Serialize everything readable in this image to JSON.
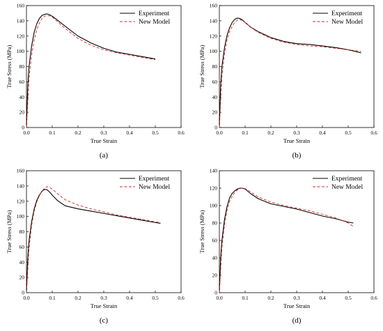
{
  "colors": {
    "experiment": "#000000",
    "model": "#d62728"
  },
  "chart_data": [
    {
      "type": "line",
      "panel_label": "(a)",
      "xlabel": "True Strain",
      "ylabel": "True Stress (MPa)",
      "xlim": [
        0,
        0.6
      ],
      "ylim": [
        0,
        160
      ],
      "xticks": [
        "0.0",
        "0.1",
        "0.2",
        "0.3",
        "0.4",
        "0.5",
        "0.6"
      ],
      "yticks": [
        "0",
        "20",
        "40",
        "60",
        "80",
        "100",
        "120",
        "140",
        "160"
      ],
      "legend_position": "top-right",
      "series": [
        {
          "name": "Experiment",
          "style": "solid",
          "x": [
            0,
            0.005,
            0.01,
            0.02,
            0.03,
            0.04,
            0.05,
            0.06,
            0.07,
            0.08,
            0.09,
            0.1,
            0.12,
            0.15,
            0.2,
            0.25,
            0.3,
            0.35,
            0.4,
            0.45,
            0.5
          ],
          "y": [
            0,
            55,
            80,
            107,
            125,
            136,
            143,
            147,
            148.5,
            149,
            148,
            146,
            141,
            133,
            120,
            111,
            104,
            99,
            96,
            93,
            90
          ]
        },
        {
          "name": "New Model",
          "style": "dashed",
          "x": [
            0,
            0.01,
            0.02,
            0.03,
            0.04,
            0.05,
            0.06,
            0.07,
            0.08,
            0.09,
            0.1,
            0.12,
            0.15,
            0.2,
            0.25,
            0.3,
            0.35,
            0.4,
            0.45,
            0.5
          ],
          "y": [
            0,
            65,
            95,
            115,
            128,
            137,
            143,
            146,
            147,
            146.5,
            145,
            139,
            130,
            117,
            108,
            102,
            98,
            95,
            92,
            89
          ]
        }
      ]
    },
    {
      "type": "line",
      "panel_label": "(b)",
      "xlabel": "True Strain",
      "ylabel": "True Stress (MPa)",
      "xlim": [
        0,
        0.6
      ],
      "ylim": [
        0,
        160
      ],
      "xticks": [
        "0.0",
        "0.1",
        "0.2",
        "0.3",
        "0.4",
        "0.5",
        "0.6"
      ],
      "yticks": [
        "0",
        "20",
        "40",
        "60",
        "80",
        "100",
        "120",
        "140",
        "160"
      ],
      "legend_position": "top-right",
      "series": [
        {
          "name": "Experiment",
          "style": "solid",
          "x": [
            0,
            0.005,
            0.01,
            0.02,
            0.03,
            0.04,
            0.05,
            0.06,
            0.07,
            0.08,
            0.09,
            0.1,
            0.12,
            0.15,
            0.2,
            0.25,
            0.3,
            0.35,
            0.4,
            0.45,
            0.5,
            0.55
          ],
          "y": [
            0,
            55,
            80,
            105,
            121,
            131,
            138,
            142,
            143.5,
            143,
            141,
            138,
            132,
            126,
            118,
            113,
            110,
            109,
            107,
            105,
            102,
            98
          ]
        },
        {
          "name": "New Model",
          "style": "dashed",
          "x": [
            0,
            0.01,
            0.02,
            0.03,
            0.04,
            0.05,
            0.06,
            0.07,
            0.08,
            0.09,
            0.1,
            0.12,
            0.15,
            0.2,
            0.25,
            0.3,
            0.35,
            0.4,
            0.45,
            0.5,
            0.55
          ],
          "y": [
            0,
            68,
            97,
            115,
            126,
            133,
            138,
            141,
            141.5,
            140.5,
            138,
            132,
            125,
            117,
            112,
            109,
            107,
            106,
            104,
            102,
            100
          ]
        }
      ]
    },
    {
      "type": "line",
      "panel_label": "(c)",
      "xlabel": "True Strain",
      "ylabel": "True Stress (MPa)",
      "xlim": [
        0,
        0.6
      ],
      "ylim": [
        0,
        160
      ],
      "xticks": [
        "0.0",
        "0.1",
        "0.2",
        "0.3",
        "0.4",
        "0.5",
        "0.6"
      ],
      "yticks": [
        "0",
        "20",
        "40",
        "60",
        "80",
        "100",
        "120",
        "140",
        "160"
      ],
      "legend_position": "top-right",
      "series": [
        {
          "name": "Experiment",
          "style": "solid",
          "x": [
            0,
            0.005,
            0.01,
            0.02,
            0.03,
            0.04,
            0.05,
            0.06,
            0.07,
            0.08,
            0.09,
            0.1,
            0.12,
            0.15,
            0.2,
            0.25,
            0.3,
            0.35,
            0.4,
            0.45,
            0.5,
            0.52
          ],
          "y": [
            0,
            45,
            68,
            93,
            110,
            121,
            128,
            133,
            135.5,
            135,
            132,
            128,
            121,
            114,
            110,
            107,
            104,
            101,
            98,
            95,
            92,
            91
          ]
        },
        {
          "name": "New Model",
          "style": "dashed",
          "x": [
            0,
            0.01,
            0.02,
            0.03,
            0.04,
            0.05,
            0.06,
            0.07,
            0.08,
            0.09,
            0.1,
            0.12,
            0.15,
            0.2,
            0.25,
            0.3,
            0.35,
            0.4,
            0.45,
            0.5,
            0.52
          ],
          "y": [
            0,
            58,
            88,
            107,
            119,
            127,
            133,
            137,
            139,
            138,
            136,
            130,
            122,
            115,
            110,
            106,
            102,
            99,
            96,
            93,
            92
          ]
        }
      ]
    },
    {
      "type": "line",
      "panel_label": "(d)",
      "xlabel": "True Strain",
      "ylabel": "True Stress (MPa)",
      "xlim": [
        0,
        0.6
      ],
      "ylim": [
        0,
        140
      ],
      "xticks": [
        "0.0",
        "0.1",
        "0.2",
        "0.3",
        "0.4",
        "0.5",
        "0.6"
      ],
      "yticks": [
        "0",
        "20",
        "40",
        "60",
        "80",
        "100",
        "120",
        "140"
      ],
      "legend_position": "top-right",
      "series": [
        {
          "name": "Experiment",
          "style": "solid",
          "x": [
            0,
            0.005,
            0.01,
            0.02,
            0.03,
            0.04,
            0.05,
            0.06,
            0.07,
            0.08,
            0.09,
            0.1,
            0.12,
            0.15,
            0.2,
            0.25,
            0.3,
            0.35,
            0.4,
            0.45,
            0.5,
            0.52
          ],
          "y": [
            0,
            40,
            60,
            84,
            99,
            109,
            114,
            117,
            119,
            120,
            120,
            119,
            114,
            108,
            102,
            99,
            96,
            92,
            88,
            85,
            81,
            80
          ]
        },
        {
          "name": "New Model",
          "style": "dashed",
          "x": [
            0,
            0.01,
            0.02,
            0.03,
            0.04,
            0.05,
            0.06,
            0.07,
            0.08,
            0.09,
            0.1,
            0.12,
            0.15,
            0.2,
            0.25,
            0.3,
            0.35,
            0.4,
            0.45,
            0.5,
            0.52
          ],
          "y": [
            0,
            52,
            78,
            95,
            105,
            111,
            115,
            118,
            119.5,
            120,
            119.5,
            116,
            110,
            104,
            100,
            97,
            94,
            90,
            86,
            80,
            76
          ]
        }
      ]
    }
  ]
}
